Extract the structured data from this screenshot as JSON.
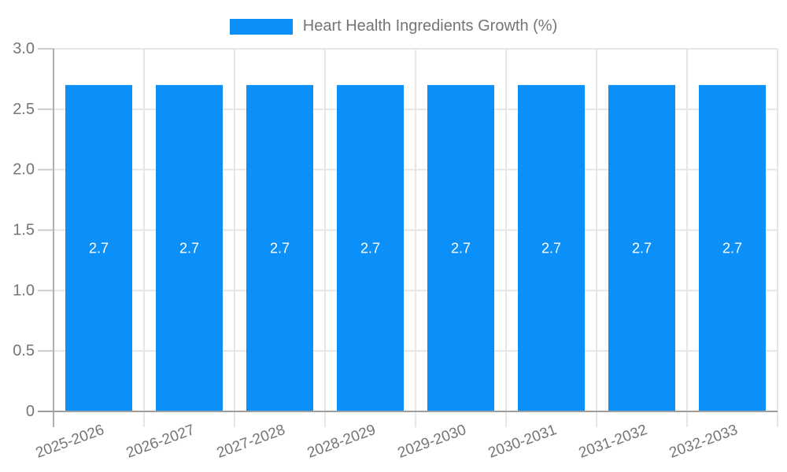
{
  "chart_data": {
    "type": "bar",
    "title": "Heart Health Ingredients Growth (%)",
    "legend": {
      "position": "top",
      "entries": [
        "Heart Health Ingredients Growth (%)"
      ]
    },
    "categories": [
      "2025-2026",
      "2026-2027",
      "2027-2028",
      "2028-2029",
      "2029-2030",
      "2030-2031",
      "2031-2032",
      "2032-2033"
    ],
    "series": [
      {
        "name": "Heart Health Ingredients Growth (%)",
        "values": [
          2.7,
          2.7,
          2.7,
          2.7,
          2.7,
          2.7,
          2.7,
          2.7
        ],
        "value_labels": [
          "2.7",
          "2.7",
          "2.7",
          "2.7",
          "2.7",
          "2.7",
          "2.7",
          "2.7"
        ]
      }
    ],
    "xlabel": "",
    "ylabel": "",
    "ylim": [
      0,
      3
    ],
    "yticks": [
      0,
      0.5,
      1,
      1.5,
      2,
      2.5,
      3
    ],
    "ytick_labels": [
      "0",
      "0.5",
      "1.0",
      "1.5",
      "2.0",
      "2.5",
      "3.0"
    ],
    "grid": true,
    "x_label_rotation_deg": -20,
    "colors": {
      "bar": "#0b90f9",
      "bar_value_text": "#ffffff",
      "axis_text": "#757575",
      "grid_line": "#e6e6e6",
      "y_axis_line": "#b0b0b0",
      "x_axis_line": "#9e9e9e",
      "tick_mark": "#cccccc",
      "background": "#ffffff"
    }
  }
}
